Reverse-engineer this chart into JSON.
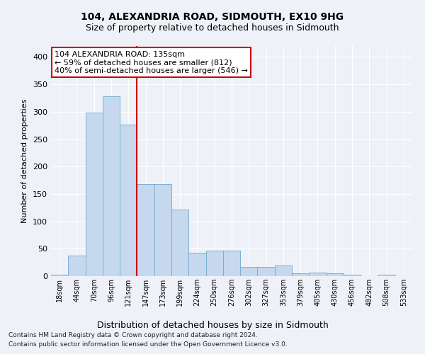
{
  "title1": "104, ALEXANDRIA ROAD, SIDMOUTH, EX10 9HG",
  "title2": "Size of property relative to detached houses in Sidmouth",
  "xlabel": "Distribution of detached houses by size in Sidmouth",
  "ylabel": "Number of detached properties",
  "footer1": "Contains HM Land Registry data © Crown copyright and database right 2024.",
  "footer2": "Contains public sector information licensed under the Open Government Licence v3.0.",
  "categories": [
    "18sqm",
    "44sqm",
    "70sqm",
    "96sqm",
    "121sqm",
    "147sqm",
    "173sqm",
    "199sqm",
    "224sqm",
    "250sqm",
    "276sqm",
    "302sqm",
    "327sqm",
    "353sqm",
    "379sqm",
    "405sqm",
    "430sqm",
    "456sqm",
    "482sqm",
    "508sqm",
    "533sqm"
  ],
  "values": [
    3,
    38,
    298,
    328,
    277,
    168,
    168,
    122,
    43,
    46,
    46,
    17,
    17,
    19,
    5,
    6,
    5,
    2,
    0,
    2,
    0
  ],
  "bar_color": "#c5d8ed",
  "bar_edge_color": "#7ab0d4",
  "vline_color": "#cc0000",
  "annotation_text": "104 ALEXANDRIA ROAD: 135sqm\n← 59% of detached houses are smaller (812)\n40% of semi-detached houses are larger (546) →",
  "annotation_box_color": "#ffffff",
  "annotation_box_edge": "#cc0000",
  "bg_color": "#eef2f8",
  "grid_color": "#ffffff",
  "ylim": [
    0,
    420
  ],
  "yticks": [
    0,
    50,
    100,
    150,
    200,
    250,
    300,
    350,
    400
  ]
}
